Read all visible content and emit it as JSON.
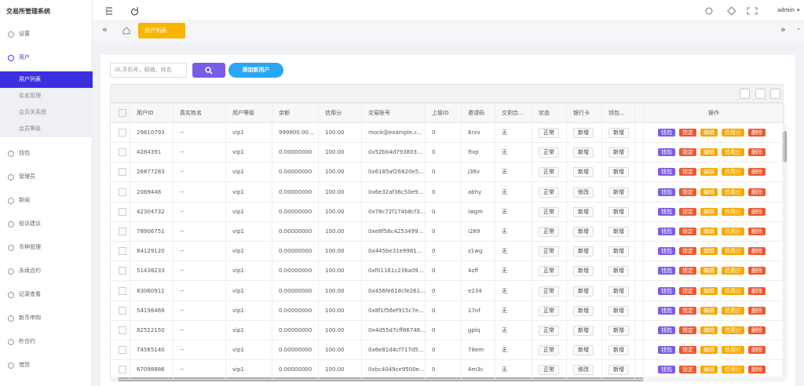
{
  "sidebar": {
    "title": "交易所管理系统",
    "menu": [
      {
        "label": "设置"
      },
      {
        "label": "用户",
        "children": [
          "用户列表",
          "实名管理",
          "会员关系图",
          "会员等级"
        ]
      },
      {
        "label": "钱包"
      },
      {
        "label": "管理员"
      },
      {
        "label": "新闻"
      },
      {
        "label": "投诉建议"
      },
      {
        "label": "币种管理"
      },
      {
        "label": "永续合约"
      },
      {
        "label": "记录查看"
      },
      {
        "label": "新币申购"
      },
      {
        "label": "秒合约"
      },
      {
        "label": "借贷"
      }
    ]
  },
  "topbar": {
    "user": "admin"
  },
  "tabs": [
    "用户列表"
  ],
  "search": {
    "placeholder": "ID,手机号，邮箱，姓名",
    "add_button": "添加新用户"
  },
  "table": {
    "columns": [
      "用户ID",
      "真实姓名",
      "用户等级",
      "余额",
      "信用分",
      "交易账号",
      "上级ID",
      "邀请码",
      "交割合...",
      "状态",
      "银行卡",
      "钱包...",
      "操作"
    ],
    "actions": [
      "钱包",
      "锁定",
      "编辑",
      "信用分",
      "删除"
    ],
    "rows": [
      [
        "29610793",
        "--",
        "vip1",
        "999900.00...",
        "100.00",
        "mock@example.c...",
        "0",
        "6rvv",
        "无",
        "正常",
        "新增",
        "新增"
      ],
      [
        "4284391",
        "--",
        "vip1",
        "0.00000000",
        "100.00",
        "0x52bb4d793803...",
        "0",
        "ftxp",
        "无",
        "正常",
        "新增",
        "新增"
      ],
      [
        "26877283",
        "--",
        "vip1",
        "0.00000000",
        "100.00",
        "0x6185af26820e5...",
        "0",
        "j36v",
        "无",
        "正常",
        "新增",
        "新增"
      ],
      [
        "2089448",
        "--",
        "vip1",
        "0.00000000",
        "100.00",
        "0x6e32af36c50e9...",
        "0",
        "abhy",
        "无",
        "正常",
        "修改",
        "新增"
      ],
      [
        "42304732",
        "--",
        "vip1",
        "0.00000000",
        "100.00",
        "0x78c72f174b8cf3...",
        "0",
        "iwgm",
        "无",
        "正常",
        "新增",
        "新增"
      ],
      [
        "78906751",
        "--",
        "vip1",
        "0.00000000",
        "100.00",
        "0xe8f58c4253499...",
        "0",
        "i289",
        "无",
        "正常",
        "新增",
        "新增"
      ],
      [
        "84129120",
        "--",
        "vip1",
        "0.00000000",
        "100.00",
        "0x445be31e9981...",
        "0",
        "z1wg",
        "无",
        "正常",
        "新增",
        "新增"
      ],
      [
        "51438233",
        "--",
        "vip1",
        "0.00000000",
        "100.00",
        "0xf01161c236a09...",
        "0",
        "4zff",
        "无",
        "正常",
        "新增",
        "新增"
      ],
      [
        "83060911",
        "--",
        "vip1",
        "0.00000000",
        "100.00",
        "0x456fe618cfe261...",
        "0",
        "e234",
        "无",
        "正常",
        "新增",
        "新增"
      ],
      [
        "54198469",
        "--",
        "vip1",
        "0.00000000",
        "100.00",
        "0x8f1f56ef915c7e...",
        "0",
        "17of",
        "无",
        "正常",
        "新增",
        "新增"
      ],
      [
        "82522150",
        "--",
        "vip1",
        "0.00000000",
        "100.00",
        "0x4d55d7cff66746...",
        "0",
        "gplq",
        "无",
        "正常",
        "新增",
        "新增"
      ],
      [
        "74565140",
        "--",
        "vip1",
        "0.00000000",
        "100.00",
        "0x6e81d4cf717d5...",
        "0",
        "78em",
        "无",
        "正常",
        "新增",
        "新增"
      ],
      [
        "67098886",
        "--",
        "vip1",
        "0.00000000",
        "100.00",
        "0xbc4049ce9500e...",
        "0",
        "4m3c",
        "无",
        "正常",
        "修改",
        "新增"
      ]
    ]
  }
}
